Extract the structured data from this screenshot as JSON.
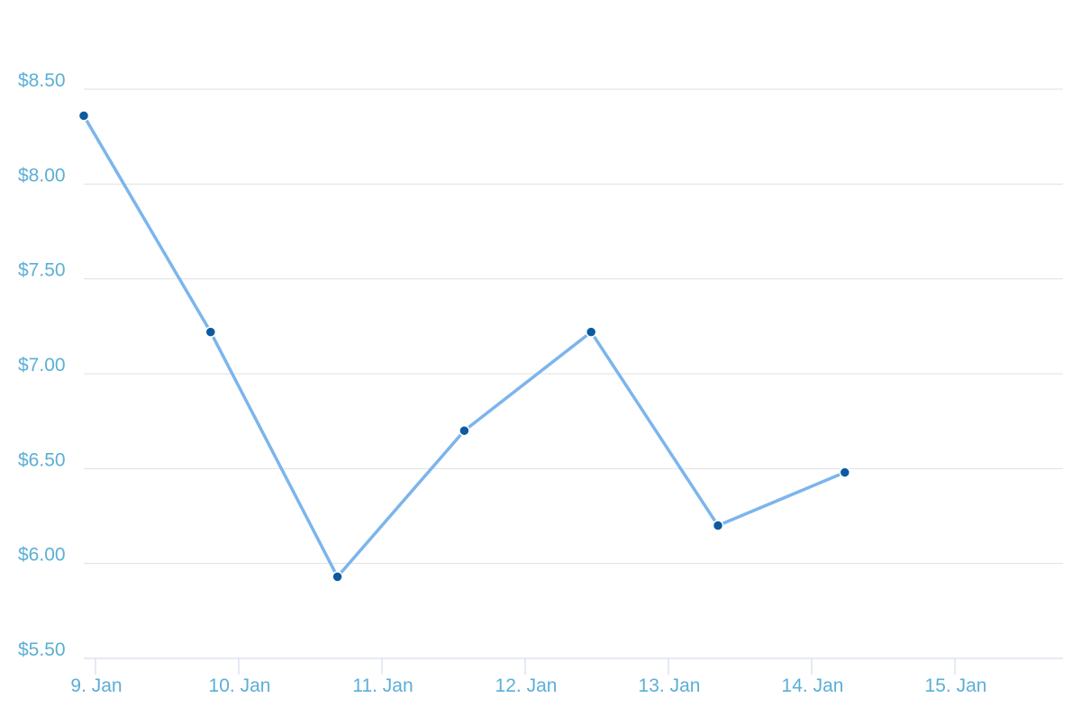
{
  "chart_data": {
    "type": "line",
    "title": "",
    "xlabel": "",
    "ylabel": "",
    "x_ticks": [
      "9. Jan",
      "10. Jan",
      "11. Jan",
      "12. Jan",
      "13. Jan",
      "14. Jan",
      "15. Jan"
    ],
    "y_ticks": [
      "$5.50",
      "$6.00",
      "$6.50",
      "$7.00",
      "$7.50",
      "$8.00",
      "$8.50"
    ],
    "y_tick_values": [
      5.5,
      6.0,
      6.5,
      7.0,
      7.5,
      8.0,
      8.5
    ],
    "ylim": [
      5.5,
      8.5
    ],
    "grid": true,
    "legend": "none",
    "series": [
      {
        "x": [
          "2015-01-08",
          "2015-01-09",
          "2015-01-10",
          "2015-01-11",
          "2015-01-12",
          "2015-01-13",
          "2015-01-14"
        ],
        "values": [
          8.36,
          7.22,
          5.93,
          6.7,
          7.22,
          6.2,
          6.48
        ]
      }
    ],
    "colors": {
      "line": "#7cb5ec",
      "point": "#0d5a9e",
      "label": "#5bafd6"
    }
  }
}
